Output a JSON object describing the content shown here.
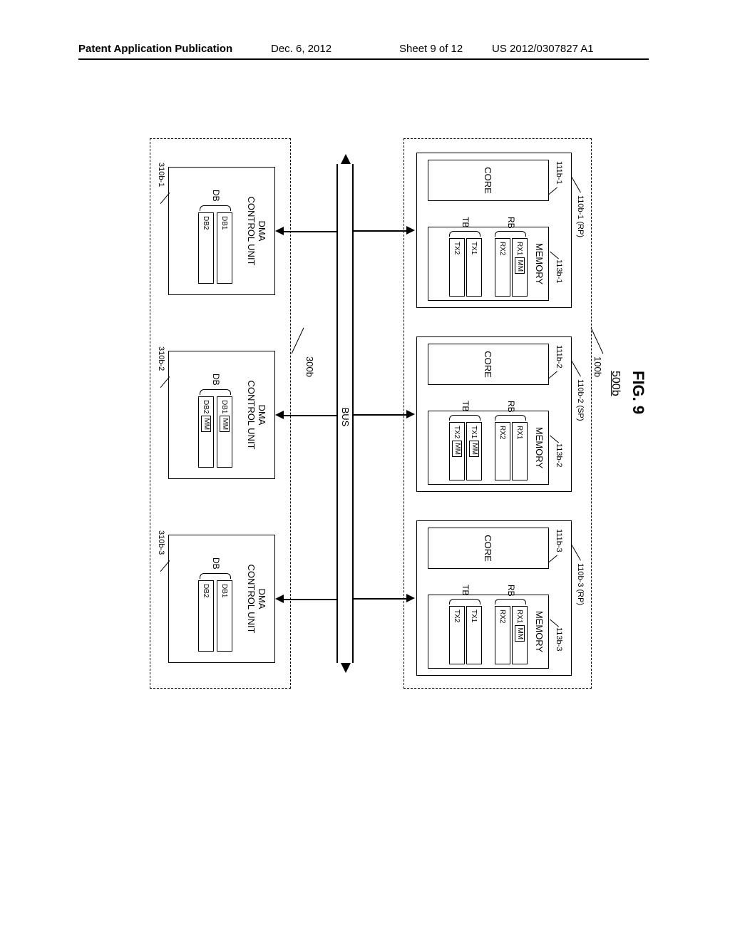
{
  "header": {
    "left": "Patent Application Publication",
    "date": "Dec. 6, 2012",
    "sheet": "Sheet 9 of 12",
    "code": "US 2012/0307827 A1"
  },
  "figure": {
    "title": "FIG. 9",
    "sysref": "500b",
    "top_block_ref": "100b",
    "bot_block_ref": "300b",
    "bus_label": "BUS",
    "processors": [
      {
        "ref": "110b-1 (RP)",
        "core_ref": "111b-1",
        "mem_ref": "113b-1",
        "core": "CORE",
        "memory": "MEMORY",
        "rb_label": "RB",
        "tb_label": "TB",
        "rx": [
          "RX1",
          "RX2"
        ],
        "tx": [
          "TX1",
          "TX2"
        ],
        "rx_mm": [
          true,
          false
        ],
        "tx_mm": [
          false,
          false
        ]
      },
      {
        "ref": "110b-2 (SP)",
        "core_ref": "111b-2",
        "mem_ref": "113b-2",
        "core": "CORE",
        "memory": "MEMORY",
        "rb_label": "RB",
        "tb_label": "TB",
        "rx": [
          "RX1",
          "RX2"
        ],
        "tx": [
          "TX1",
          "TX2"
        ],
        "rx_mm": [
          false,
          false
        ],
        "tx_mm": [
          true,
          true
        ]
      },
      {
        "ref": "110b-3 (RP)",
        "core_ref": "111b-3",
        "mem_ref": "113b-3",
        "core": "CORE",
        "memory": "MEMORY",
        "rb_label": "RB",
        "tb_label": "TB",
        "rx": [
          "RX1",
          "RX2"
        ],
        "tx": [
          "TX1",
          "TX2"
        ],
        "rx_mm": [
          true,
          false
        ],
        "tx_mm": [
          false,
          false
        ]
      }
    ],
    "dma": [
      {
        "ref": "310b-1",
        "title": "DMA\nCONTROL UNIT",
        "db_label": "DB",
        "db": [
          "DB1",
          "DB2"
        ],
        "db_mm": [
          false,
          false
        ]
      },
      {
        "ref": "310b-2",
        "title": "DMA\nCONTROL UNIT",
        "db_label": "DB",
        "db": [
          "DB1",
          "DB2"
        ],
        "db_mm": [
          true,
          true
        ]
      },
      {
        "ref": "310b-3",
        "title": "DMA\nCONTROL UNIT",
        "db_label": "DB",
        "db": [
          "DB1",
          "DB2"
        ],
        "db_mm": [
          false,
          false
        ]
      }
    ]
  }
}
